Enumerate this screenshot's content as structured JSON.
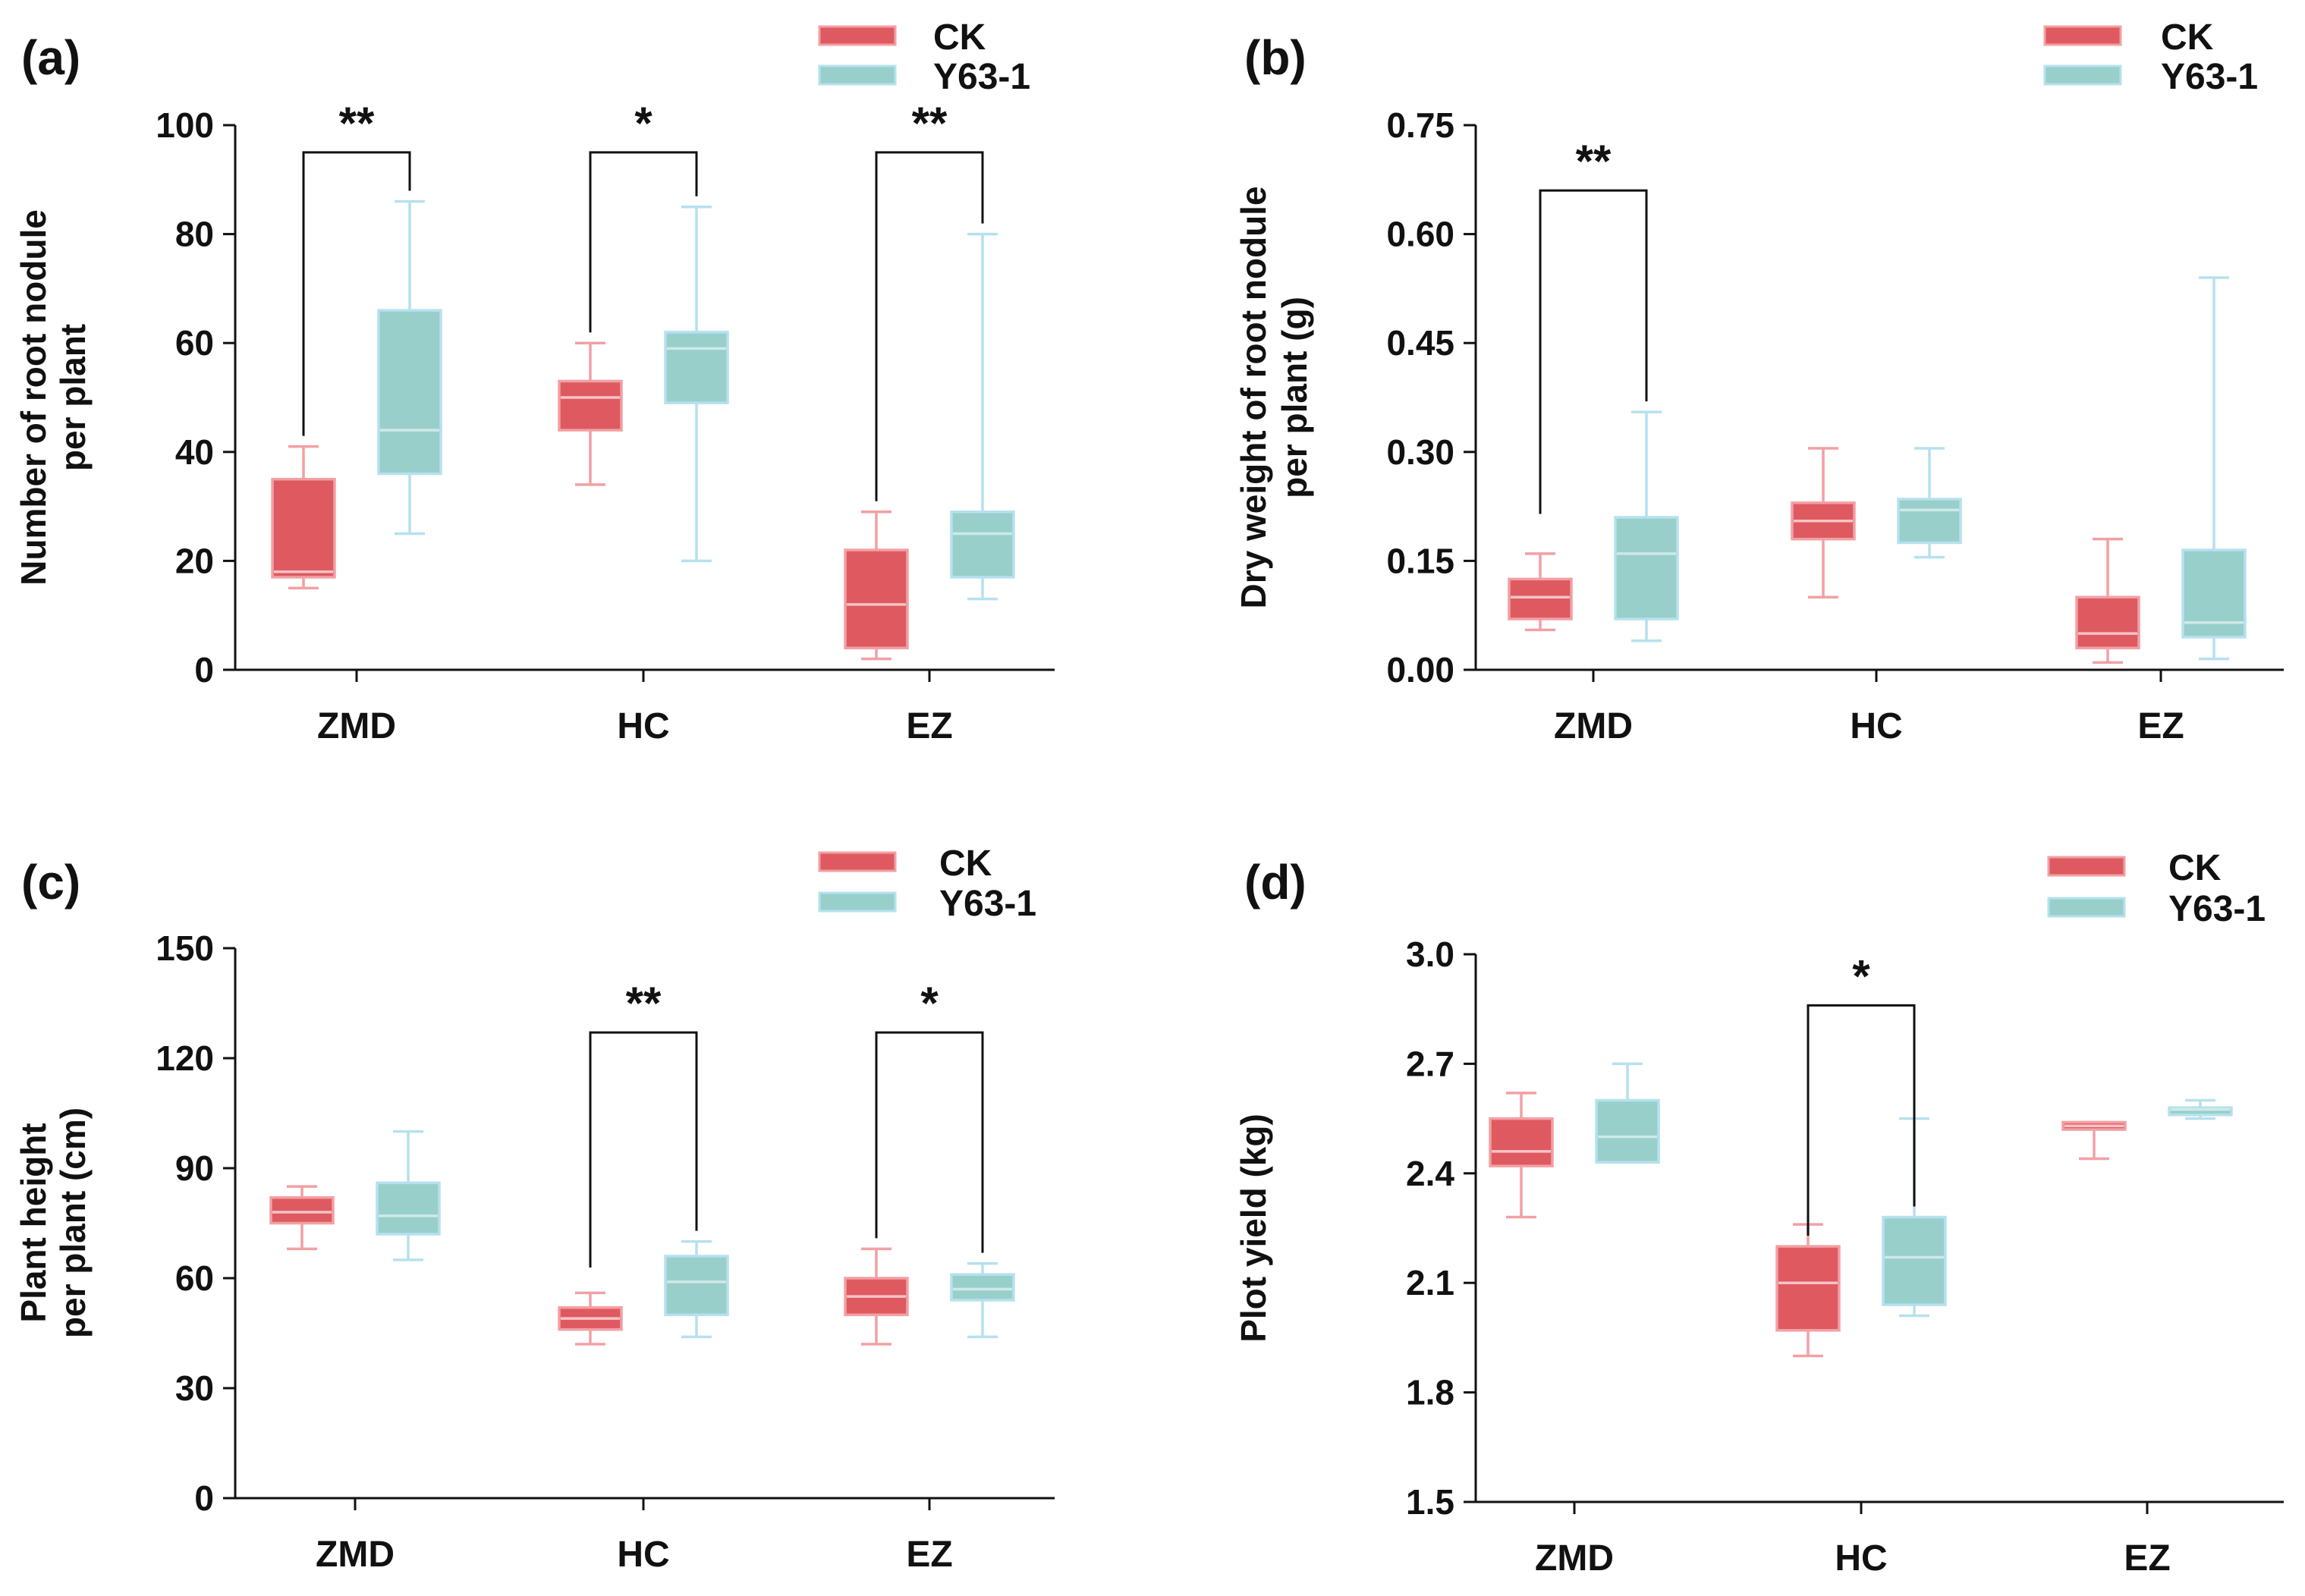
{
  "chart_data": [
    {
      "panel": "(a)",
      "type": "boxplot",
      "categories": [
        "ZMD",
        "HC",
        "EZ"
      ],
      "ylabel": [
        "Number of root nodule",
        "per plant"
      ],
      "ylim": [
        0,
        100
      ],
      "yticks": [
        "0",
        "20",
        "40",
        "60",
        "80",
        "100"
      ],
      "ytick_values": [
        0,
        20,
        40,
        60,
        80,
        100
      ],
      "legend": [
        "CK",
        "Y63-1"
      ],
      "series": [
        {
          "name": "CK",
          "boxes": [
            {
              "min": 15,
              "q1": 17,
              "median": 18,
              "q3": 35,
              "max": 41
            },
            {
              "min": 34,
              "q1": 44,
              "median": 50,
              "q3": 53,
              "max": 60
            },
            {
              "min": 2,
              "q1": 4,
              "median": 12,
              "q3": 22,
              "max": 29
            }
          ]
        },
        {
          "name": "Y63-1",
          "boxes": [
            {
              "min": 25,
              "q1": 36,
              "median": 44,
              "q3": 66,
              "max": 86
            },
            {
              "min": 20,
              "q1": 49,
              "median": 59,
              "q3": 62,
              "max": 85
            },
            {
              "min": 13,
              "q1": 17,
              "median": 25,
              "q3": 29,
              "max": 80
            }
          ]
        }
      ],
      "significance": [
        {
          "category": "ZMD",
          "label": "**",
          "left_value": 41,
          "right_value": 86,
          "bracket_value": 95
        },
        {
          "category": "HC",
          "label": "*",
          "left_value": 60,
          "right_value": 85,
          "bracket_value": 95
        },
        {
          "category": "EZ",
          "label": "**",
          "left_value": 29,
          "right_value": 80,
          "bracket_value": 95
        }
      ]
    },
    {
      "panel": "(b)",
      "type": "boxplot",
      "categories": [
        "ZMD",
        "HC",
        "EZ"
      ],
      "ylabel": [
        "Dry weight of root nodule",
        "per plant (g)"
      ],
      "ylim": [
        0,
        0.75
      ],
      "yticks": [
        "0.00",
        "0.15",
        "0.30",
        "0.45",
        "0.60",
        "0.75"
      ],
      "ytick_values": [
        0,
        0.15,
        0.3,
        0.45,
        0.6,
        0.75
      ],
      "legend": [
        "CK",
        "Y63-1"
      ],
      "series": [
        {
          "name": "CK",
          "boxes": [
            {
              "min": 0.055,
              "q1": 0.07,
              "median": 0.1,
              "q3": 0.125,
              "max": 0.16
            },
            {
              "min": 0.1,
              "q1": 0.18,
              "median": 0.205,
              "q3": 0.23,
              "max": 0.305
            },
            {
              "min": 0.01,
              "q1": 0.03,
              "median": 0.05,
              "q3": 0.1,
              "max": 0.18
            }
          ]
        },
        {
          "name": "Y63-1",
          "boxes": [
            {
              "min": 0.04,
              "q1": 0.07,
              "median": 0.16,
              "q3": 0.21,
              "max": 0.355
            },
            {
              "min": 0.155,
              "q1": 0.175,
              "median": 0.22,
              "q3": 0.235,
              "max": 0.305
            },
            {
              "min": 0.015,
              "q1": 0.045,
              "median": 0.065,
              "q3": 0.165,
              "max": 0.54
            }
          ]
        }
      ],
      "significance": [
        {
          "category": "ZMD",
          "label": "**",
          "left_value": 0.2,
          "right_value": 0.355,
          "bracket_value": 0.66
        }
      ]
    },
    {
      "panel": "(c)",
      "type": "boxplot",
      "categories": [
        "ZMD",
        "HC",
        "EZ"
      ],
      "ylabel": [
        "Plant height",
        "per plant (cm)"
      ],
      "ylim": [
        0,
        150
      ],
      "yticks": [
        "0",
        "30",
        "60",
        "90",
        "120",
        "150"
      ],
      "ytick_values": [
        0,
        30,
        60,
        90,
        120,
        150
      ],
      "legend": [
        "CK",
        "Y63-1"
      ],
      "series": [
        {
          "name": "CK",
          "boxes": [
            {
              "min": 68,
              "q1": 75,
              "median": 78,
              "q3": 82,
              "max": 85
            },
            {
              "min": 42,
              "q1": 46,
              "median": 49,
              "q3": 52,
              "max": 56
            },
            {
              "min": 42,
              "q1": 50,
              "median": 55,
              "q3": 60,
              "max": 68
            }
          ]
        },
        {
          "name": "Y63-1",
          "boxes": [
            {
              "min": 65,
              "q1": 72,
              "median": 77,
              "q3": 86,
              "max": 100
            },
            {
              "min": 44,
              "q1": 50,
              "median": 59,
              "q3": 66,
              "max": 70
            },
            {
              "min": 44,
              "q1": 54,
              "median": 57,
              "q3": 61,
              "max": 64
            }
          ]
        }
      ],
      "significance": [
        {
          "category": "HC",
          "label": "**",
          "left_value": 60,
          "right_value": 70,
          "bracket_value": 127
        },
        {
          "category": "EZ",
          "label": "*",
          "left_value": 68,
          "right_value": 64,
          "bracket_value": 127
        }
      ]
    },
    {
      "panel": "(d)",
      "type": "boxplot",
      "categories": [
        "ZMD",
        "HC",
        "EZ"
      ],
      "ylabel": [
        "Plot yield (kg)"
      ],
      "ylim": [
        1.5,
        3.0
      ],
      "yticks": [
        "1.5",
        "1.8",
        "2.1",
        "2.4",
        "2.7",
        "3.0"
      ],
      "ytick_values": [
        1.5,
        1.8,
        2.1,
        2.4,
        2.7,
        3.0
      ],
      "legend": [
        "CK",
        "Y63-1"
      ],
      "series": [
        {
          "name": "CK",
          "boxes": [
            {
              "min": 2.28,
              "q1": 2.42,
              "median": 2.46,
              "q3": 2.55,
              "max": 2.62
            },
            {
              "min": 1.9,
              "q1": 1.97,
              "median": 2.1,
              "q3": 2.2,
              "max": 2.26
            },
            {
              "min": 2.44,
              "q1": 2.52,
              "median": 2.53,
              "q3": 2.54,
              "max": 2.54
            }
          ]
        },
        {
          "name": "Y63-1",
          "boxes": [
            {
              "min": 2.43,
              "q1": 2.43,
              "median": 2.5,
              "q3": 2.6,
              "max": 2.7
            },
            {
              "min": 2.01,
              "q1": 2.04,
              "median": 2.17,
              "q3": 2.28,
              "max": 2.55
            },
            {
              "min": 2.55,
              "q1": 2.56,
              "median": 2.575,
              "q3": 2.58,
              "max": 2.6
            }
          ]
        }
      ],
      "significance": [
        {
          "category": "HC",
          "label": "*",
          "left_value": 2.2,
          "right_value": 2.28,
          "bracket_value": 2.86
        }
      ]
    }
  ],
  "colors": {
    "ck_fill": "#de5a60",
    "ck_line": "#f2a0a4",
    "ck_median": "#f6c4c7",
    "y63_fill": "#98cfcb",
    "y63_line": "#b6e1ee",
    "y63_median": "#cfe9e7",
    "axis": "#111111"
  }
}
